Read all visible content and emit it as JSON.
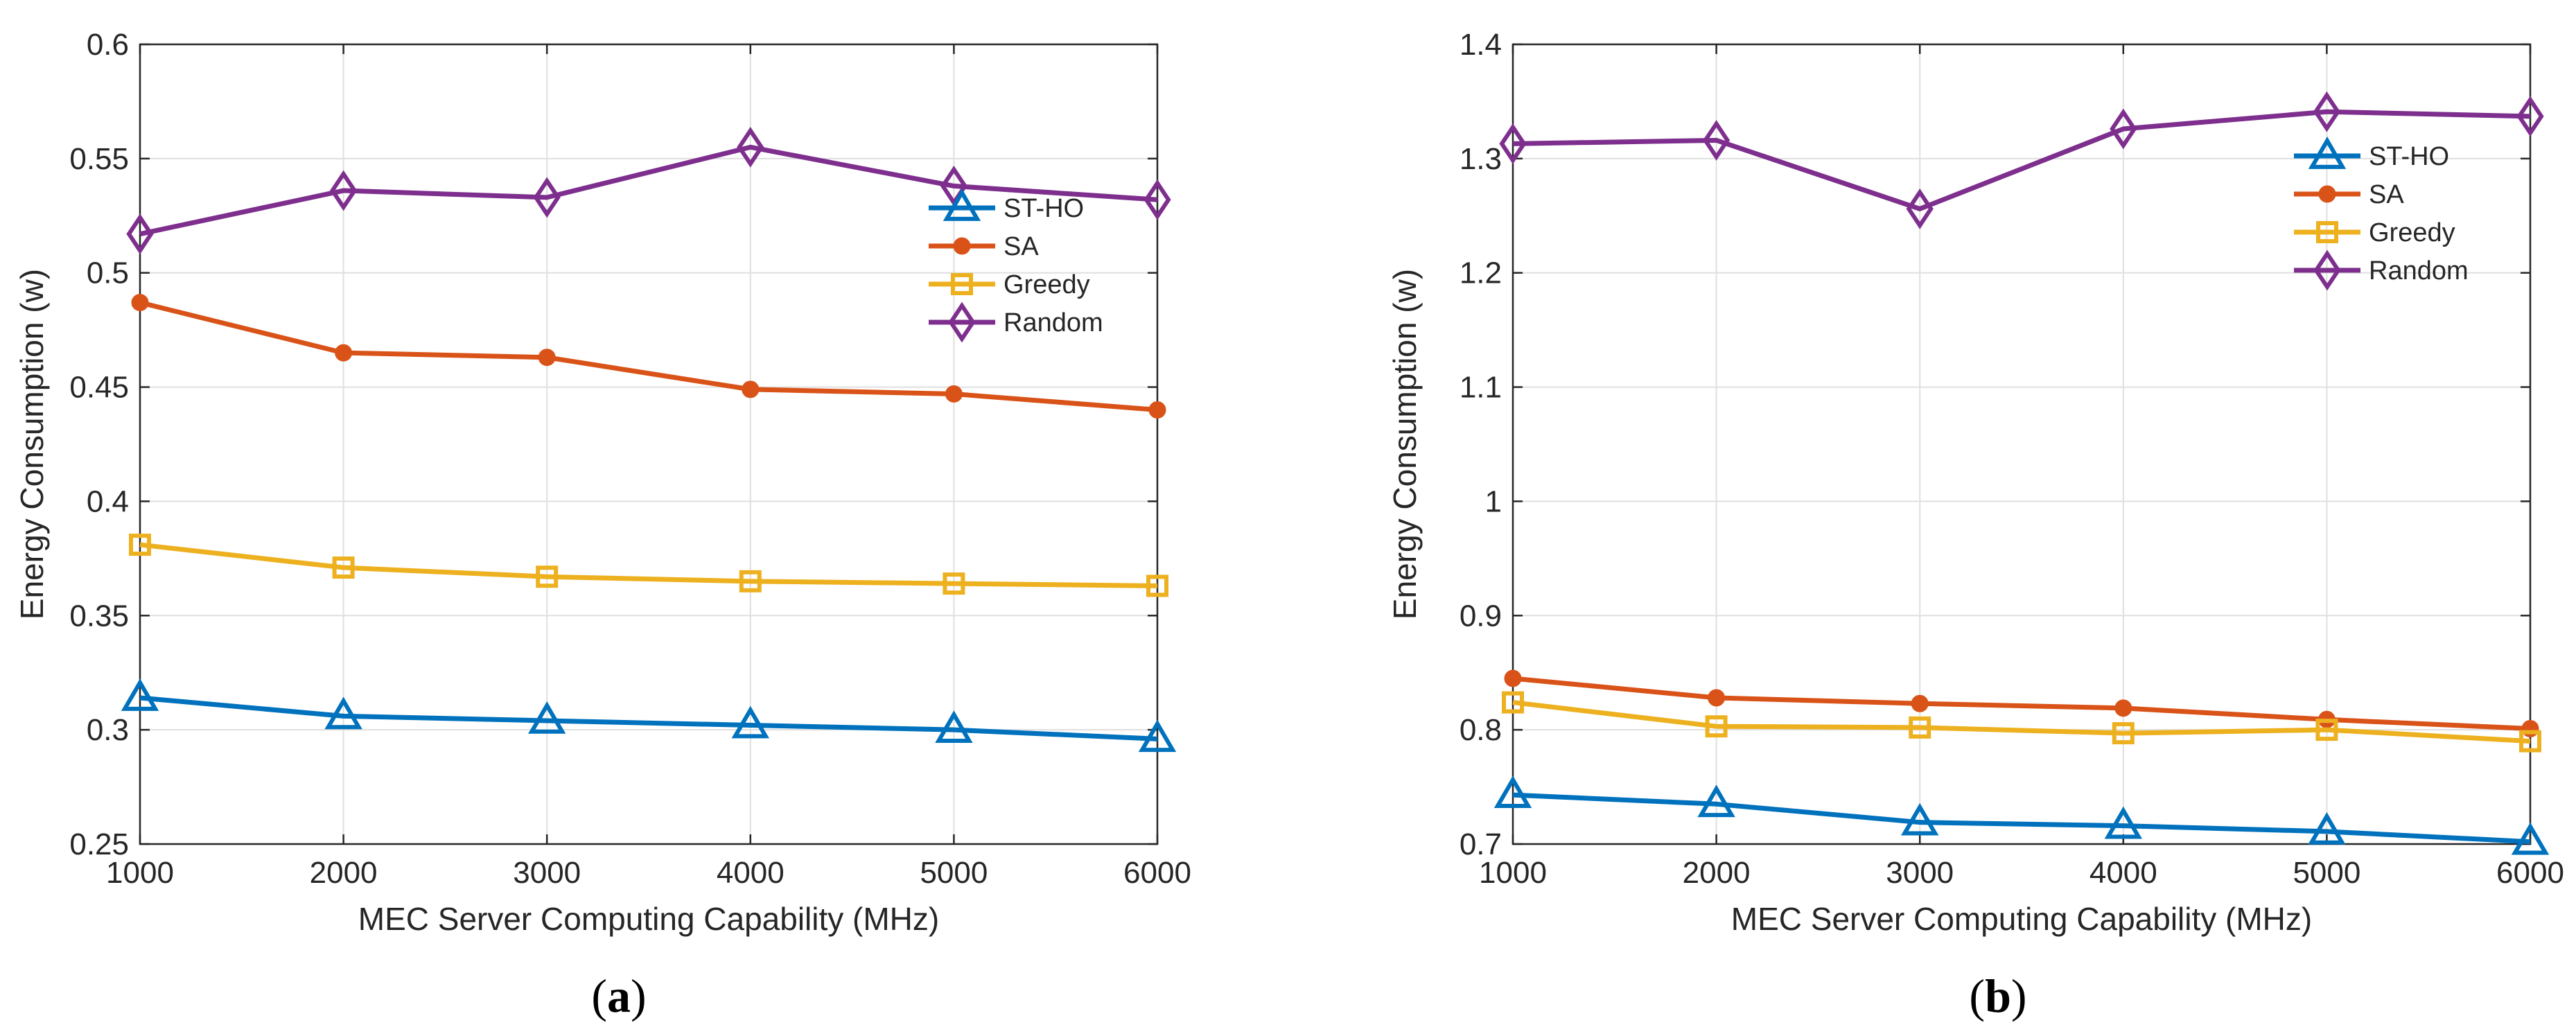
{
  "chart_data": [
    {
      "id": "a",
      "type": "line",
      "caption_letter": "a",
      "xlabel": "MEC Server Computing Capability (MHz)",
      "ylabel": "Energy Consumption (w)",
      "x": [
        1000,
        2000,
        3000,
        4000,
        5000,
        6000
      ],
      "xlim": [
        1000,
        6000
      ],
      "ylim": [
        0.25,
        0.6
      ],
      "xticks": [
        1000,
        2000,
        3000,
        4000,
        5000,
        6000
      ],
      "yticks": [
        0.25,
        0.3,
        0.35,
        0.4,
        0.45,
        0.5,
        0.55,
        0.6
      ],
      "ytick_labels": [
        "0.25",
        "0.3",
        "0.35",
        "0.4",
        "0.45",
        "0.5",
        "0.55",
        "0.6"
      ],
      "grid": true,
      "legend_position": "right-upper",
      "series": [
        {
          "name": "ST-HO",
          "color": "#0072BD",
          "marker": "triangle",
          "values": [
            0.314,
            0.306,
            0.304,
            0.302,
            0.3,
            0.296
          ]
        },
        {
          "name": "SA",
          "color": "#D95319",
          "marker": "circle",
          "values": [
            0.487,
            0.465,
            0.463,
            0.449,
            0.447,
            0.44
          ]
        },
        {
          "name": "Greedy",
          "color": "#EDB120",
          "marker": "square",
          "values": [
            0.381,
            0.371,
            0.367,
            0.365,
            0.364,
            0.363
          ]
        },
        {
          "name": "Random",
          "color": "#7E2F8E",
          "marker": "diamond",
          "values": [
            0.517,
            0.536,
            0.533,
            0.555,
            0.538,
            0.532
          ]
        }
      ]
    },
    {
      "id": "b",
      "type": "line",
      "caption_letter": "b",
      "xlabel": "MEC Server Computing Capability (MHz)",
      "ylabel": "Energy Consumption (w)",
      "x": [
        1000,
        2000,
        3000,
        4000,
        5000,
        6000
      ],
      "xlim": [
        1000,
        6000
      ],
      "ylim": [
        0.7,
        1.4
      ],
      "xticks": [
        1000,
        2000,
        3000,
        4000,
        5000,
        6000
      ],
      "yticks": [
        0.7,
        0.8,
        0.9,
        1.0,
        1.1,
        1.2,
        1.3,
        1.4
      ],
      "ytick_labels": [
        "0.7",
        "0.8",
        "0.9",
        "1",
        "1.1",
        "1.2",
        "1.3",
        "1.4"
      ],
      "grid": true,
      "legend_position": "top-right",
      "series": [
        {
          "name": "ST-HO",
          "color": "#0072BD",
          "marker": "triangle",
          "values": [
            0.743,
            0.735,
            0.719,
            0.716,
            0.711,
            0.702
          ]
        },
        {
          "name": "SA",
          "color": "#D95319",
          "marker": "circle",
          "values": [
            0.845,
            0.828,
            0.823,
            0.819,
            0.809,
            0.801
          ]
        },
        {
          "name": "Greedy",
          "color": "#EDB120",
          "marker": "square",
          "values": [
            0.824,
            0.803,
            0.802,
            0.797,
            0.8,
            0.79
          ]
        },
        {
          "name": "Random",
          "color": "#7E2F8E",
          "marker": "diamond",
          "values": [
            1.313,
            1.316,
            1.256,
            1.326,
            1.341,
            1.337
          ]
        }
      ]
    }
  ]
}
